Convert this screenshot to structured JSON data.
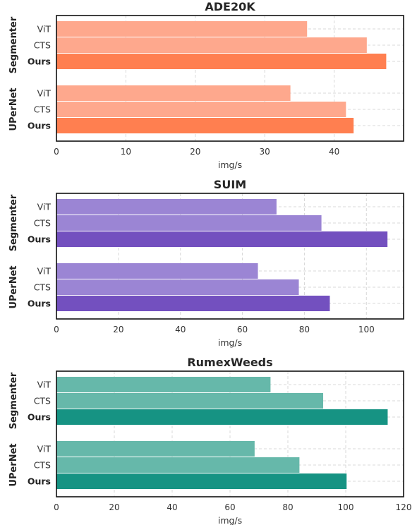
{
  "chart_data": [
    {
      "type": "bar",
      "orientation": "horizontal",
      "title": "ADE20K",
      "xlabel": "img/s",
      "xlim": [
        0,
        50
      ],
      "xticks": [
        0,
        10,
        20,
        30,
        40
      ],
      "grid": true,
      "colors": {
        "light": "#fea88d",
        "dark": "#ff7f50"
      },
      "groups": [
        {
          "name": "Segmenter",
          "categories": [
            "ViT",
            "CTS",
            "Ours"
          ],
          "values": [
            36.1,
            44.7,
            47.5
          ]
        },
        {
          "name": "UPerNet",
          "categories": [
            "ViT",
            "CTS",
            "Ours"
          ],
          "values": [
            33.7,
            41.7,
            42.8
          ]
        }
      ]
    },
    {
      "type": "bar",
      "orientation": "horizontal",
      "title": "SUIM",
      "xlabel": "img/s",
      "xlim": [
        0,
        112
      ],
      "xticks": [
        0,
        20,
        40,
        60,
        80,
        100
      ],
      "grid": true,
      "colors": {
        "light": "#9b85d4",
        "dark": "#7350bf"
      },
      "groups": [
        {
          "name": "Segmenter",
          "categories": [
            "ViT",
            "CTS",
            "Ours"
          ],
          "values": [
            71,
            85.5,
            106.8
          ]
        },
        {
          "name": "UPerNet",
          "categories": [
            "ViT",
            "CTS",
            "Ours"
          ],
          "values": [
            65,
            78.2,
            88.2
          ]
        }
      ]
    },
    {
      "type": "bar",
      "orientation": "horizontal",
      "title": "RumexWeeds",
      "xlabel": "img/s",
      "xlim": [
        0,
        120
      ],
      "xticks": [
        0,
        20,
        40,
        60,
        80,
        100,
        120
      ],
      "grid": true,
      "colors": {
        "light": "#66b8aa",
        "dark": "#169383"
      },
      "groups": [
        {
          "name": "Segmenter",
          "categories": [
            "ViT",
            "CTS",
            "Ours"
          ],
          "values": [
            74,
            92.2,
            114.5
          ]
        },
        {
          "name": "UPerNet",
          "categories": [
            "ViT",
            "CTS",
            "Ours"
          ],
          "values": [
            68.5,
            84,
            100.3
          ]
        }
      ]
    }
  ]
}
